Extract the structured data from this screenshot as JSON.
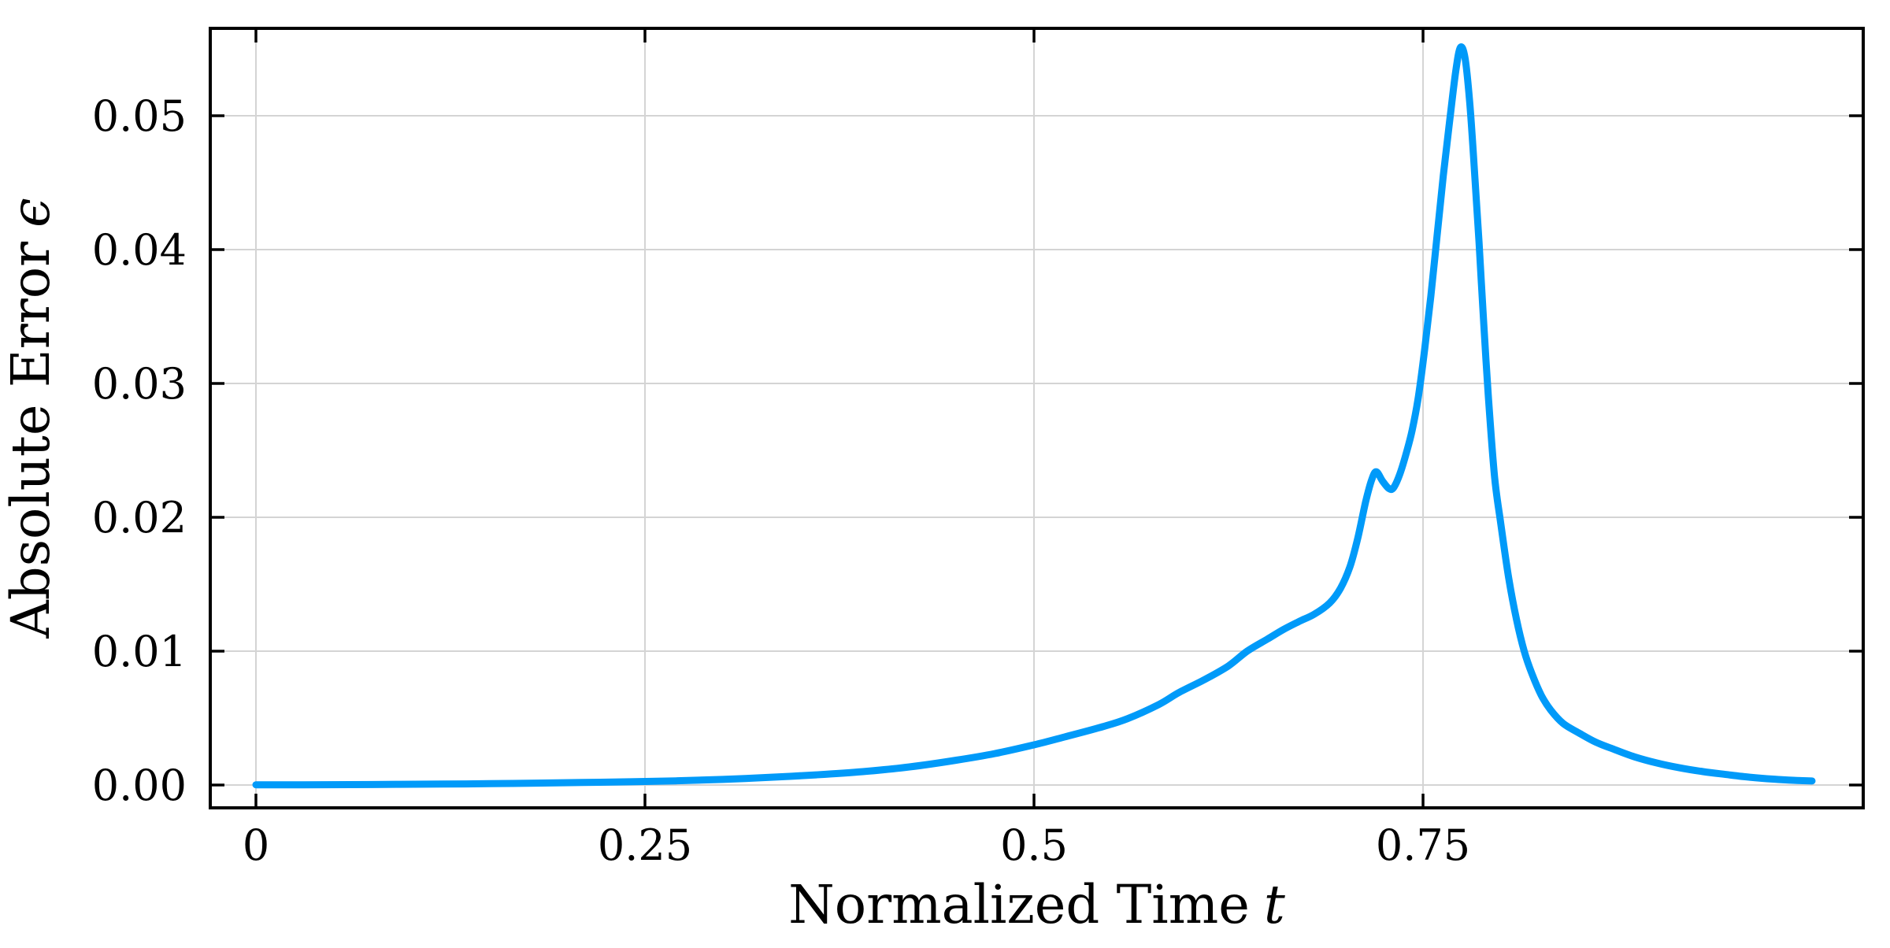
{
  "page": {
    "background": "#ffffff"
  },
  "chart_data": {
    "type": "line",
    "title": "",
    "xlabel": {
      "text": "Normalized Time",
      "var": "t"
    },
    "ylabel": {
      "text": "Absolute Error",
      "var": "ϵ"
    },
    "xlim": [
      -0.02935,
      1.03287
    ],
    "ylim": [
      -0.0017059,
      0.0565294
    ],
    "grid": true,
    "legend": "none",
    "xticks": {
      "values": [
        0,
        0.25,
        0.5,
        0.75
      ],
      "labels": [
        "0",
        "0.25",
        "0.5",
        "0.75"
      ]
    },
    "yticks": {
      "values": [
        0,
        0.01,
        0.02,
        0.03,
        0.04,
        0.05
      ],
      "labels": [
        "0.00",
        "0.01",
        "0.02",
        "0.03",
        "0.04",
        "0.05"
      ]
    },
    "style": {
      "line_color": "#009AF9",
      "line_width": 9,
      "axis_color": "#000000",
      "grid_color": "#d4d4d4",
      "background": "#ffffff"
    },
    "series": [
      {
        "name": "absolute-error",
        "points": [
          [
            0.0,
            2e-05
          ],
          [
            0.03,
            2e-05
          ],
          [
            0.06,
            3e-05
          ],
          [
            0.09,
            5e-05
          ],
          [
            0.12,
            7e-05
          ],
          [
            0.15,
            0.0001
          ],
          [
            0.18,
            0.00014
          ],
          [
            0.21,
            0.00019
          ],
          [
            0.24,
            0.00024
          ],
          [
            0.27,
            0.00031
          ],
          [
            0.3,
            0.00042
          ],
          [
            0.33,
            0.00057
          ],
          [
            0.36,
            0.00076
          ],
          [
            0.39,
            0.001
          ],
          [
            0.42,
            0.00135
          ],
          [
            0.45,
            0.00185
          ],
          [
            0.475,
            0.00235
          ],
          [
            0.5,
            0.003
          ],
          [
            0.52,
            0.0036
          ],
          [
            0.544,
            0.00435
          ],
          [
            0.56,
            0.00495
          ],
          [
            0.58,
            0.006
          ],
          [
            0.593,
            0.0069
          ],
          [
            0.61,
            0.0079
          ],
          [
            0.625,
            0.0089
          ],
          [
            0.637,
            0.01
          ],
          [
            0.65,
            0.0109
          ],
          [
            0.66,
            0.0116
          ],
          [
            0.67,
            0.0122
          ],
          [
            0.68,
            0.01275
          ],
          [
            0.69,
            0.0136
          ],
          [
            0.697,
            0.0147
          ],
          [
            0.703,
            0.0163
          ],
          [
            0.708,
            0.0184
          ],
          [
            0.713,
            0.0211
          ],
          [
            0.717,
            0.0228
          ],
          [
            0.72,
            0.0234
          ],
          [
            0.724,
            0.0227
          ],
          [
            0.728,
            0.02215
          ],
          [
            0.731,
            0.0222
          ],
          [
            0.735,
            0.0232
          ],
          [
            0.739,
            0.0247
          ],
          [
            0.743,
            0.0265
          ],
          [
            0.747,
            0.029
          ],
          [
            0.751,
            0.0325
          ],
          [
            0.755,
            0.0365
          ],
          [
            0.759,
            0.041
          ],
          [
            0.763,
            0.0455
          ],
          [
            0.767,
            0.0495
          ],
          [
            0.771,
            0.0533
          ],
          [
            0.774,
            0.0551
          ],
          [
            0.777,
            0.0543
          ],
          [
            0.78,
            0.051
          ],
          [
            0.783,
            0.046
          ],
          [
            0.786,
            0.0405
          ],
          [
            0.789,
            0.0345
          ],
          [
            0.792,
            0.029
          ],
          [
            0.796,
            0.023
          ],
          [
            0.8,
            0.0195
          ],
          [
            0.805,
            0.0155
          ],
          [
            0.81,
            0.0124
          ],
          [
            0.815,
            0.01
          ],
          [
            0.82,
            0.0083
          ],
          [
            0.826,
            0.0067
          ],
          [
            0.832,
            0.0056
          ],
          [
            0.84,
            0.0046
          ],
          [
            0.85,
            0.0039
          ],
          [
            0.861,
            0.0032
          ],
          [
            0.873,
            0.00265
          ],
          [
            0.886,
            0.0021
          ],
          [
            0.9,
            0.00165
          ],
          [
            0.915,
            0.00128
          ],
          [
            0.93,
            0.001
          ],
          [
            0.945,
            0.00078
          ],
          [
            0.96,
            0.00058
          ],
          [
            0.975,
            0.00044
          ],
          [
            0.988,
            0.00035
          ],
          [
            1.0,
            0.0003
          ]
        ]
      }
    ]
  }
}
